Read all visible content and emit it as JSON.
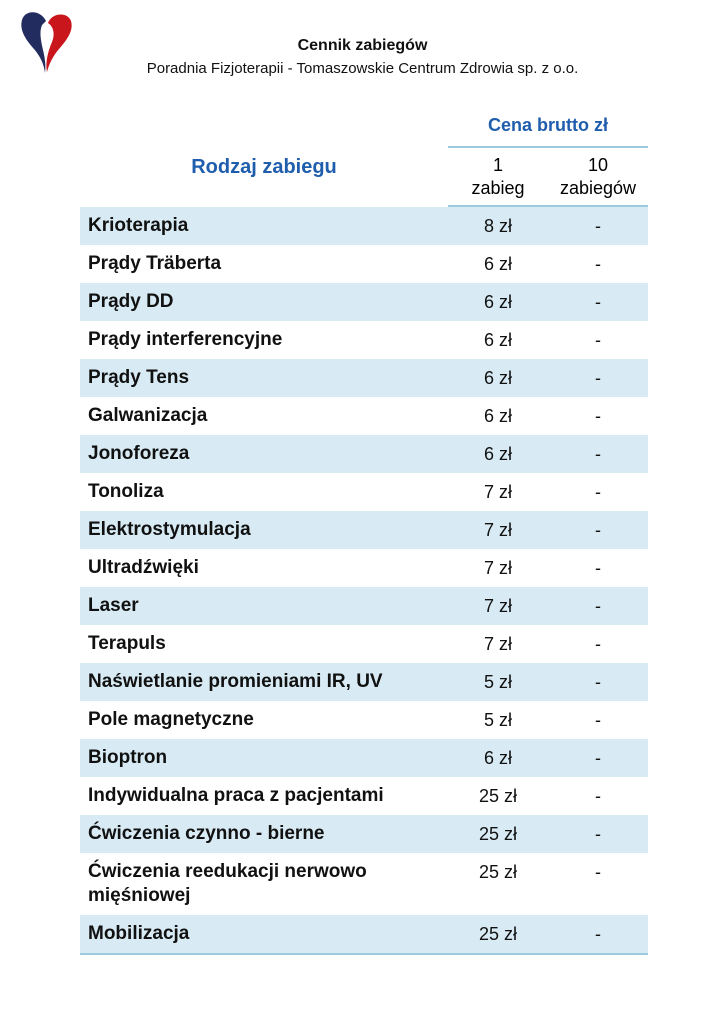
{
  "page": {
    "title": "Cennik zabiegów",
    "subtitle": "Poradnia Fizjoterapii - Tomaszowskie Centrum Zdrowia sp. z o.o."
  },
  "logo": {
    "icon": "heart-logo-icon",
    "navy": "#232C5E",
    "red": "#C9161D"
  },
  "table": {
    "group_header": "Cena brutto zł",
    "name_header": "Rodzaj zabiegu",
    "col_headers": [
      "1\nzabieg",
      "10\nzabiegów"
    ],
    "rows": [
      {
        "name": "Krioterapia",
        "p1": "8 zł",
        "p10": "-"
      },
      {
        "name": "Prądy Träberta",
        "p1": "6 zł",
        "p10": "-"
      },
      {
        "name": "Prądy DD",
        "p1": "6 zł",
        "p10": "-"
      },
      {
        "name": "Prądy interferencyjne",
        "p1": "6 zł",
        "p10": "-"
      },
      {
        "name": "Prądy Tens",
        "p1": "6 zł",
        "p10": "-"
      },
      {
        "name": "Galwanizacja",
        "p1": "6 zł",
        "p10": "-"
      },
      {
        "name": "Jonoforeza",
        "p1": "6 zł",
        "p10": "-"
      },
      {
        "name": "Tonoliza",
        "p1": "7 zł",
        "p10": "-"
      },
      {
        "name": "Elektrostymulacja",
        "p1": "7 zł",
        "p10": "-"
      },
      {
        "name": "Ultradźwięki",
        "p1": "7 zł",
        "p10": "-"
      },
      {
        "name": "Laser",
        "p1": "7 zł",
        "p10": "-"
      },
      {
        "name": "Terapuls",
        "p1": "7 zł",
        "p10": "-"
      },
      {
        "name": "Naświetlanie promieniami IR, UV",
        "p1": "5 zł",
        "p10": "-"
      },
      {
        "name": "Pole magnetyczne",
        "p1": "5 zł",
        "p10": "-"
      },
      {
        "name": "Bioptron",
        "p1": "6 zł",
        "p10": "-"
      },
      {
        "name": "Indywidualna praca z pacjentami",
        "p1": "25 zł",
        "p10": "-"
      },
      {
        "name": "Ćwiczenia czynno - bierne",
        "p1": "25 zł",
        "p10": "-"
      },
      {
        "name": "Ćwiczenia reedukacji nerwowo mięśniowej",
        "p1": "25 zł",
        "p10": "-"
      },
      {
        "name": "Mobilizacja",
        "p1": "25 zł",
        "p10": "-"
      }
    ]
  },
  "colors": {
    "accent_blue": "#1F5DAD",
    "row_alt_bg": "#D8EBF4",
    "rule_line": "#9CCADD"
  }
}
